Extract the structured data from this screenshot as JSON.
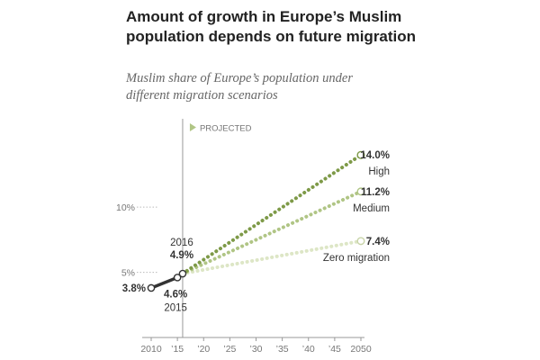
{
  "title": "Amount of growth in Europe’s Muslim population depends on future migration",
  "subtitle": "Muslim share of Europe’s population under different migration scenarios",
  "chart_data": {
    "type": "line",
    "x_ticks": [
      {
        "value": 2010,
        "label": "2010"
      },
      {
        "value": 2015,
        "label": "’15"
      },
      {
        "value": 2020,
        "label": "’20"
      },
      {
        "value": 2025,
        "label": "’25"
      },
      {
        "value": 2030,
        "label": "’30"
      },
      {
        "value": 2035,
        "label": "’35"
      },
      {
        "value": 2040,
        "label": "’40"
      },
      {
        "value": 2045,
        "label": "’45"
      },
      {
        "value": 2050,
        "label": "2050"
      }
    ],
    "y_ticks": [
      {
        "value": 5,
        "label": "5%"
      },
      {
        "value": 10,
        "label": "10%"
      }
    ],
    "xlim": [
      2010,
      2050
    ],
    "ylim": [
      0,
      14.5
    ],
    "projected_label": "PROJECTED",
    "projected_start": 2016,
    "historical": {
      "color": "#333333",
      "points": [
        {
          "x": 2010,
          "y": 3.8,
          "label": "3.8%"
        },
        {
          "x": 2015,
          "y": 4.6,
          "label": "4.6%",
          "year_label": "2015"
        },
        {
          "x": 2016,
          "y": 4.9,
          "label": "4.9%",
          "year_label": "2016"
        }
      ]
    },
    "series": [
      {
        "name": "High",
        "color": "#7e9a48",
        "x": [
          2016,
          2050
        ],
        "y": [
          4.9,
          14.0
        ],
        "end_label": "14.0%"
      },
      {
        "name": "Medium",
        "color": "#b0c585",
        "x": [
          2016,
          2050
        ],
        "y": [
          4.9,
          11.2
        ],
        "end_label": "11.2%"
      },
      {
        "name": "Zero migration",
        "color": "#dde6c6",
        "x": [
          2016,
          2050
        ],
        "y": [
          4.9,
          7.4
        ],
        "end_label": "7.4%"
      }
    ],
    "colors": {
      "axis": "#999999",
      "text": "#333333",
      "muted": "#777777"
    }
  }
}
